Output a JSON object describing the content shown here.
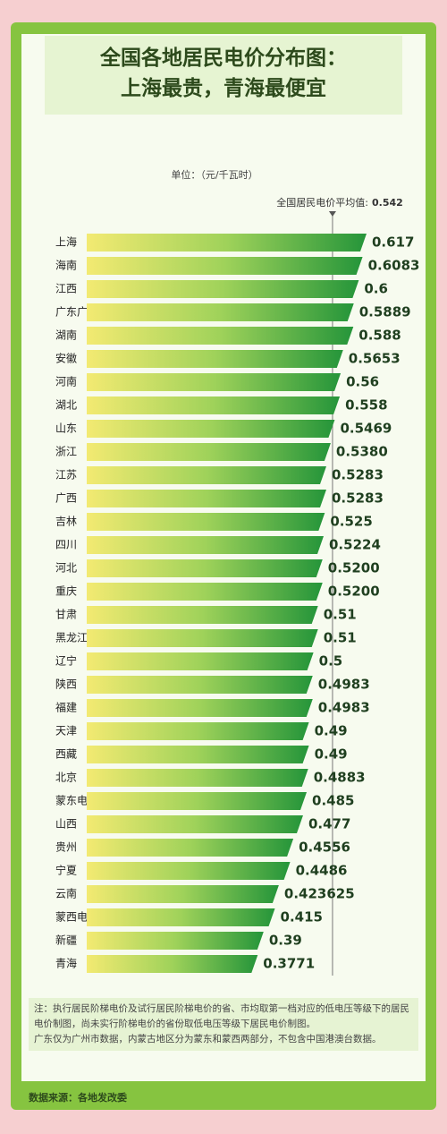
{
  "chart_data": {
    "type": "bar",
    "title": "全国各地居民电价分布图：",
    "subtitle": "上海最贵，青海最便宜",
    "unit": "单位：（元/千瓦时）",
    "average_label": "全国居民电价平均值:",
    "average_value": 0.542,
    "categories": [
      "上海",
      "海南",
      "江西",
      "广东广州",
      "湖南",
      "安徽",
      "河南",
      "湖北",
      "山东",
      "浙江",
      "江苏",
      "广西",
      "吉林",
      "四川",
      "河北",
      "重庆",
      "甘肃",
      "黑龙江",
      "辽宁",
      "陕西",
      "福建",
      "天津",
      "西藏",
      "北京",
      "蒙东电网",
      "山西",
      "贵州",
      "宁夏",
      "云南",
      "蒙西电网",
      "新疆",
      "青海"
    ],
    "values": [
      0.617,
      0.6083,
      0.6,
      0.5889,
      0.588,
      0.5653,
      0.56,
      0.558,
      0.5469,
      0.538,
      0.5283,
      0.5283,
      0.525,
      0.5224,
      0.52,
      0.52,
      0.51,
      0.51,
      0.5,
      0.4983,
      0.4983,
      0.49,
      0.49,
      0.4883,
      0.485,
      0.477,
      0.4556,
      0.4486,
      0.423625,
      0.415,
      0.39,
      0.3771
    ],
    "value_labels": [
      "0.617",
      "0.6083",
      "0.6",
      "0.5889",
      "0.588",
      "0.5653",
      "0.56",
      "0.558",
      "0.5469",
      "0.5380",
      "0.5283",
      "0.5283",
      "0.525",
      "0.5224",
      "0.5200",
      "0.5200",
      "0.51",
      "0.51",
      "0.5",
      "0.4983",
      "0.4983",
      "0.49",
      "0.49",
      "0.4883",
      "0.485",
      "0.477",
      "0.4556",
      "0.4486",
      "0.423625",
      "0.415",
      "0.39",
      "0.3771"
    ],
    "note_lines": [
      "注：执行居民阶梯电价及试行居民阶梯电价的省、市均取第一档对应的低电压等级下的居民电价制图，尚未实行阶梯电价的省份取低电压等级下居民电价制图。",
      "广东仅为广州市数据，内蒙古地区分为蒙东和蒙西两部分，不包含中国港澳台数据。"
    ],
    "source": "数据来源：各地发改委"
  }
}
